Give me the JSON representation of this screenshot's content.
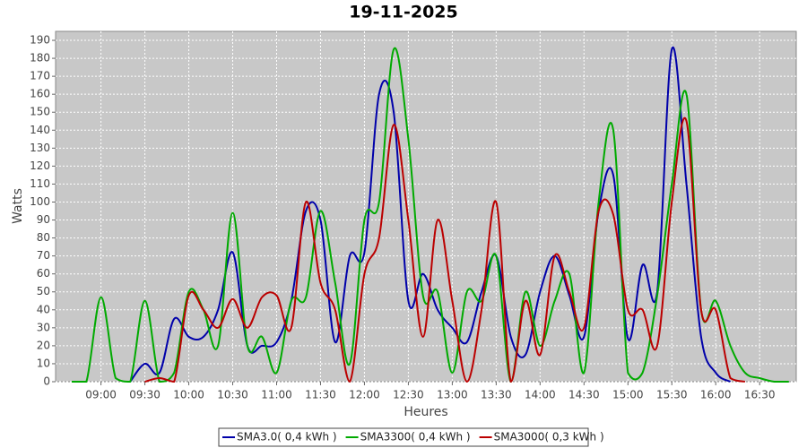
{
  "chart_data": {
    "type": "line",
    "title": "19-11-2025",
    "x_label": "Heures",
    "y_label": "Watts",
    "x": [
      520,
      530,
      540,
      550,
      560,
      570,
      580,
      590,
      600,
      610,
      620,
      630,
      640,
      650,
      660,
      670,
      680,
      690,
      700,
      710,
      720,
      730,
      740,
      750,
      760,
      770,
      780,
      790,
      800,
      810,
      820,
      830,
      840,
      850,
      860,
      870,
      880,
      890,
      900,
      910,
      920,
      930,
      940,
      950,
      960,
      970,
      980,
      990,
      1000,
      1010
    ],
    "series": [
      {
        "name": "SMA3.0( 0,4 kWh )",
        "color": "#0000aa",
        "values": [
          null,
          null,
          null,
          null,
          0,
          10,
          5,
          35,
          25,
          25,
          40,
          72,
          20,
          20,
          22,
          45,
          95,
          90,
          22,
          70,
          72,
          160,
          150,
          45,
          60,
          40,
          30,
          22,
          50,
          70,
          25,
          15,
          50,
          70,
          48,
          25,
          95,
          115,
          24,
          65,
          50,
          185,
          110,
          25,
          5,
          0,
          null,
          null,
          null,
          null
        ]
      },
      {
        "name": "SMA3300( 0,4 kWh )",
        "color": "#00aa00",
        "values": [
          0,
          0,
          47,
          2,
          0,
          45,
          0,
          5,
          50,
          40,
          20,
          94,
          20,
          25,
          5,
          45,
          47,
          95,
          55,
          10,
          90,
          100,
          185,
          135,
          48,
          50,
          5,
          50,
          45,
          70,
          0,
          50,
          20,
          45,
          60,
          5,
          100,
          140,
          5,
          5,
          48,
          110,
          160,
          40,
          45,
          20,
          5,
          2,
          0,
          0
        ]
      },
      {
        "name": "SMA3000( 0,3 kWh )",
        "color": "#bb0000",
        "values": [
          null,
          null,
          null,
          null,
          null,
          0,
          2,
          0,
          48,
          40,
          30,
          46,
          30,
          47,
          48,
          30,
          100,
          55,
          40,
          0,
          60,
          80,
          143,
          90,
          25,
          90,
          45,
          0,
          40,
          100,
          0,
          45,
          15,
          70,
          50,
          30,
          95,
          93,
          40,
          40,
          20,
          100,
          145,
          40,
          40,
          2,
          0,
          null,
          null,
          null
        ]
      }
    ],
    "xlim": [
      509,
      1015
    ],
    "xticks": [
      {
        "value": 540,
        "label": "09:00"
      },
      {
        "value": 570,
        "label": "09:30"
      },
      {
        "value": 600,
        "label": "10:00"
      },
      {
        "value": 630,
        "label": "10:30"
      },
      {
        "value": 660,
        "label": "11:00"
      },
      {
        "value": 690,
        "label": "11:30"
      },
      {
        "value": 720,
        "label": "12:00"
      },
      {
        "value": 750,
        "label": "12:30"
      },
      {
        "value": 780,
        "label": "13:00"
      },
      {
        "value": 810,
        "label": "13:30"
      },
      {
        "value": 840,
        "label": "14:00"
      },
      {
        "value": 870,
        "label": "14:30"
      },
      {
        "value": 900,
        "label": "15:00"
      },
      {
        "value": 930,
        "label": "15:30"
      },
      {
        "value": 960,
        "label": "16:00"
      },
      {
        "value": 990,
        "label": "16:30"
      }
    ],
    "ylim": [
      0,
      195
    ],
    "yticks": [
      0,
      10,
      20,
      30,
      40,
      50,
      60,
      70,
      80,
      90,
      100,
      110,
      120,
      130,
      140,
      150,
      160,
      170,
      180,
      190
    ],
    "grid": true,
    "legend": "bottom"
  }
}
